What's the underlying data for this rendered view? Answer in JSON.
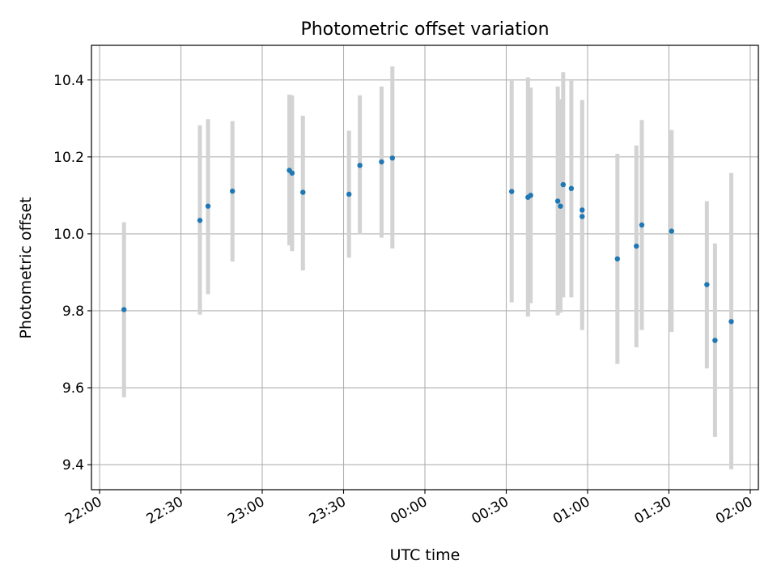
{
  "chart_data": {
    "type": "scatter",
    "title": "Photometric offset variation",
    "xlabel": "UTC time",
    "ylabel": "Photometric offset",
    "x_ticks": [
      "22:00",
      "22:30",
      "23:00",
      "23:30",
      "00:00",
      "00:30",
      "01:00",
      "01:30",
      "02:00"
    ],
    "y_ticks": [
      "9.4",
      "9.6",
      "9.8",
      "10.0",
      "10.2",
      "10.4"
    ],
    "xlim": [
      "21:57",
      "02:03"
    ],
    "ylim": [
      9.335,
      10.49
    ],
    "grid": true,
    "colors": {
      "point": "#1f77b4",
      "errorbar": "#d3d3d3",
      "grid": "#b0b0b0",
      "axes": "#000000"
    },
    "points": [
      {
        "x": "22:09",
        "y": 9.803,
        "yerr_low": 9.575,
        "yerr_high": 10.03
      },
      {
        "x": "22:37",
        "y": 10.035,
        "yerr_low": 9.79,
        "yerr_high": 10.282
      },
      {
        "x": "22:40",
        "y": 10.072,
        "yerr_low": 9.843,
        "yerr_high": 10.298
      },
      {
        "x": "22:49",
        "y": 10.111,
        "yerr_low": 9.928,
        "yerr_high": 10.293
      },
      {
        "x": "23:10",
        "y": 10.165,
        "yerr_low": 9.97,
        "yerr_high": 10.362
      },
      {
        "x": "23:11",
        "y": 10.158,
        "yerr_low": 9.955,
        "yerr_high": 10.36
      },
      {
        "x": "23:15",
        "y": 10.108,
        "yerr_low": 9.905,
        "yerr_high": 10.307
      },
      {
        "x": "23:32",
        "y": 10.103,
        "yerr_low": 9.938,
        "yerr_high": 10.268
      },
      {
        "x": "23:36",
        "y": 10.178,
        "yerr_low": 9.998,
        "yerr_high": 10.36
      },
      {
        "x": "23:44",
        "y": 10.187,
        "yerr_low": 9.99,
        "yerr_high": 10.383
      },
      {
        "x": "23:48",
        "y": 10.197,
        "yerr_low": 9.962,
        "yerr_high": 10.435
      },
      {
        "x": "00:32",
        "y": 10.11,
        "yerr_low": 9.822,
        "yerr_high": 10.398
      },
      {
        "x": "00:38",
        "y": 10.095,
        "yerr_low": 9.785,
        "yerr_high": 10.407
      },
      {
        "x": "00:39",
        "y": 10.1,
        "yerr_low": 9.82,
        "yerr_high": 10.38
      },
      {
        "x": "00:49",
        "y": 10.085,
        "yerr_low": 9.788,
        "yerr_high": 10.383
      },
      {
        "x": "00:50",
        "y": 10.072,
        "yerr_low": 9.795,
        "yerr_high": 10.35
      },
      {
        "x": "00:51",
        "y": 10.128,
        "yerr_low": 9.835,
        "yerr_high": 10.42
      },
      {
        "x": "00:54",
        "y": 10.118,
        "yerr_low": 9.835,
        "yerr_high": 10.398
      },
      {
        "x": "00:58",
        "y": 10.062,
        "yerr_low": 9.775,
        "yerr_high": 10.348
      },
      {
        "x": "00:58",
        "y": 10.045,
        "yerr_low": 9.75,
        "yerr_high": 10.338
      },
      {
        "x": "01:11",
        "y": 9.935,
        "yerr_low": 9.662,
        "yerr_high": 10.208
      },
      {
        "x": "01:18",
        "y": 9.968,
        "yerr_low": 9.705,
        "yerr_high": 10.23
      },
      {
        "x": "01:20",
        "y": 10.023,
        "yerr_low": 9.75,
        "yerr_high": 10.296
      },
      {
        "x": "01:31",
        "y": 10.007,
        "yerr_low": 9.745,
        "yerr_high": 10.27
      },
      {
        "x": "01:44",
        "y": 9.868,
        "yerr_low": 9.65,
        "yerr_high": 10.085
      },
      {
        "x": "01:47",
        "y": 9.723,
        "yerr_low": 9.472,
        "yerr_high": 9.975
      },
      {
        "x": "01:53",
        "y": 9.772,
        "yerr_low": 9.388,
        "yerr_high": 10.158
      }
    ]
  }
}
